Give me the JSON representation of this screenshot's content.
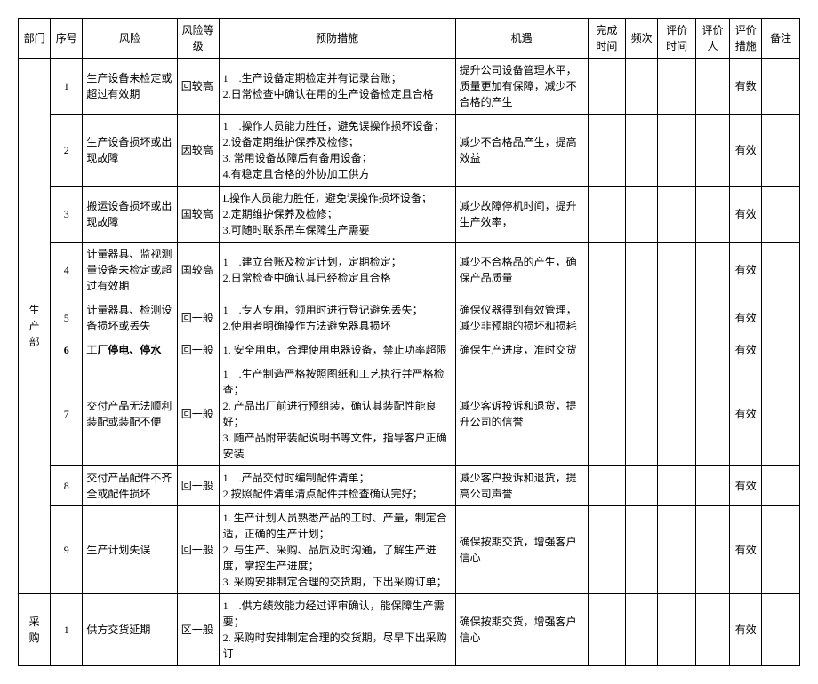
{
  "headers": {
    "dept": "部门",
    "seq": "序号",
    "risk": "风险",
    "level": "风险等级",
    "prev": "预防措施",
    "opp": "机遇",
    "done": "完成时间",
    "freq": "频次",
    "evalt": "评价时间",
    "evalp": "评价人",
    "evalm": "评价措施",
    "note": "备注"
  },
  "dept_production": "生产部",
  "dept_purchasing": "采购",
  "rows": [
    {
      "seq": "1",
      "risk": "生产设备未检定或超过有效期",
      "level": "回较高",
      "prev": "1　.生产设备定期检定并有记录台账；\n2.日常检查中确认在用的生产设备检定且合格",
      "opp": "提升公司设备管理水平，质量更加有保障，减少不合格的产生",
      "evalm": "有数"
    },
    {
      "seq": "2",
      "risk": "生产设备损坏或出现故障",
      "level": "因较高",
      "prev": "1　.操作人员能力胜任，避免误操作损坏设备；\n2.设备定期维护保养及检修；\n3. 常用设备故障后有备用设备；\n4.有稳定且合格的外协加工供方",
      "opp": "减少不合格品产生，提高效益",
      "evalm": "有效"
    },
    {
      "seq": "3",
      "risk": "搬运设备损坏或出现故障",
      "level": "国较高",
      "prev": "L操作人员能力胜任，避免误操作损坏设备；\n2.定期维护保养及检修；\n3.可随时联系吊车保障生产需要",
      "opp": "减少故障停机时间，提升生产效率，",
      "evalm": "有效"
    },
    {
      "seq": "4",
      "risk": "计量器具、监视测量设备未检定或超过有效期",
      "level": "国较高",
      "prev": "1　.建立台账及检定计划，定期检定；\n2.日常检查中确认其已经检定且合格",
      "opp": "减少不合格品的产生，确保产品质量",
      "evalm": "有效"
    },
    {
      "seq": "5",
      "risk": "计量器具、检测设备损坏或丢失",
      "level": "回一般",
      "prev": "1　.专人专用，领用时进行登记避免丢失；\n2.使用者明确操作方法避免器具损坏",
      "opp": "确保仪器得到有效管理，减少非预期的损坏和损耗",
      "evalm": "有效"
    },
    {
      "seq": "6",
      "risk": "工厂停电、停水",
      "level": "回一般",
      "prev": "1. 安全用电，合理使用电器设备，禁止功率超限",
      "opp": "确保生产进度，准时交货",
      "evalm": "有效",
      "bold": true
    },
    {
      "seq": "7",
      "risk": "交付产品无法顺利装配或装配不便",
      "level": "回一般",
      "prev": "1　.生产制造严格按照图纸和工艺执行并严格检查；\n2. 产品出厂前进行预组装，确认其装配性能良好；\n3. 随产品附带装配说明书等文件，指导客户正确安装",
      "opp": "减少客诉投诉和退货，提升公司的信誉",
      "evalm": "有效"
    },
    {
      "seq": "8",
      "risk": "交付产品配件不齐全或配件损坏",
      "level": "回一般",
      "prev": "1　.产品交付时编制配件清单；\n2.按照配件清单清点配件并检查确认完好；",
      "opp": "减少客户投诉和退货，提高公司声誉",
      "evalm": "有效"
    },
    {
      "seq": "9",
      "risk": "生产计划失误",
      "level": "回一般",
      "prev": "1. 生产计划人员熟悉产品的工时、产量，制定合适，正确的生产计划；\n2. 与生产、采购、品质及时沟通，了解生产进度，掌控生产进度；\n3. 采购安排制定合理的交货期，下出采购订单；",
      "opp": "确保按期交货，增强客户信心",
      "evalm": "有效"
    }
  ],
  "purchasing_row": {
    "seq": "1",
    "risk": "供方交货延期",
    "level": "区一般",
    "prev": "1　.供方绩效能力经过评审确认，能保障生产需要；\n2. 采购时安排制定合理的交货期，尽早下出采购订",
    "opp": "确保按期交货，增强客户信心",
    "evalm": "有效"
  }
}
